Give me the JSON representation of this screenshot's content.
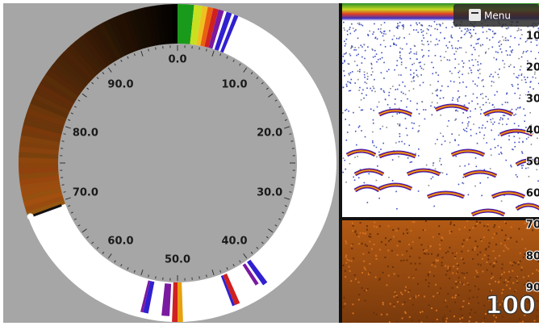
{
  "dial": {
    "labels": [
      "0.0",
      "10.0",
      "20.0",
      "30.0",
      "40.0",
      "50.0",
      "60.0",
      "70.0",
      "80.0",
      "90.0"
    ]
  },
  "menu": {
    "label": "Menu"
  },
  "depth_scale": {
    "labels": [
      "10",
      "20",
      "30",
      "40",
      "50",
      "60",
      "70",
      "80",
      "90"
    ]
  },
  "range": {
    "label": "100"
  }
}
